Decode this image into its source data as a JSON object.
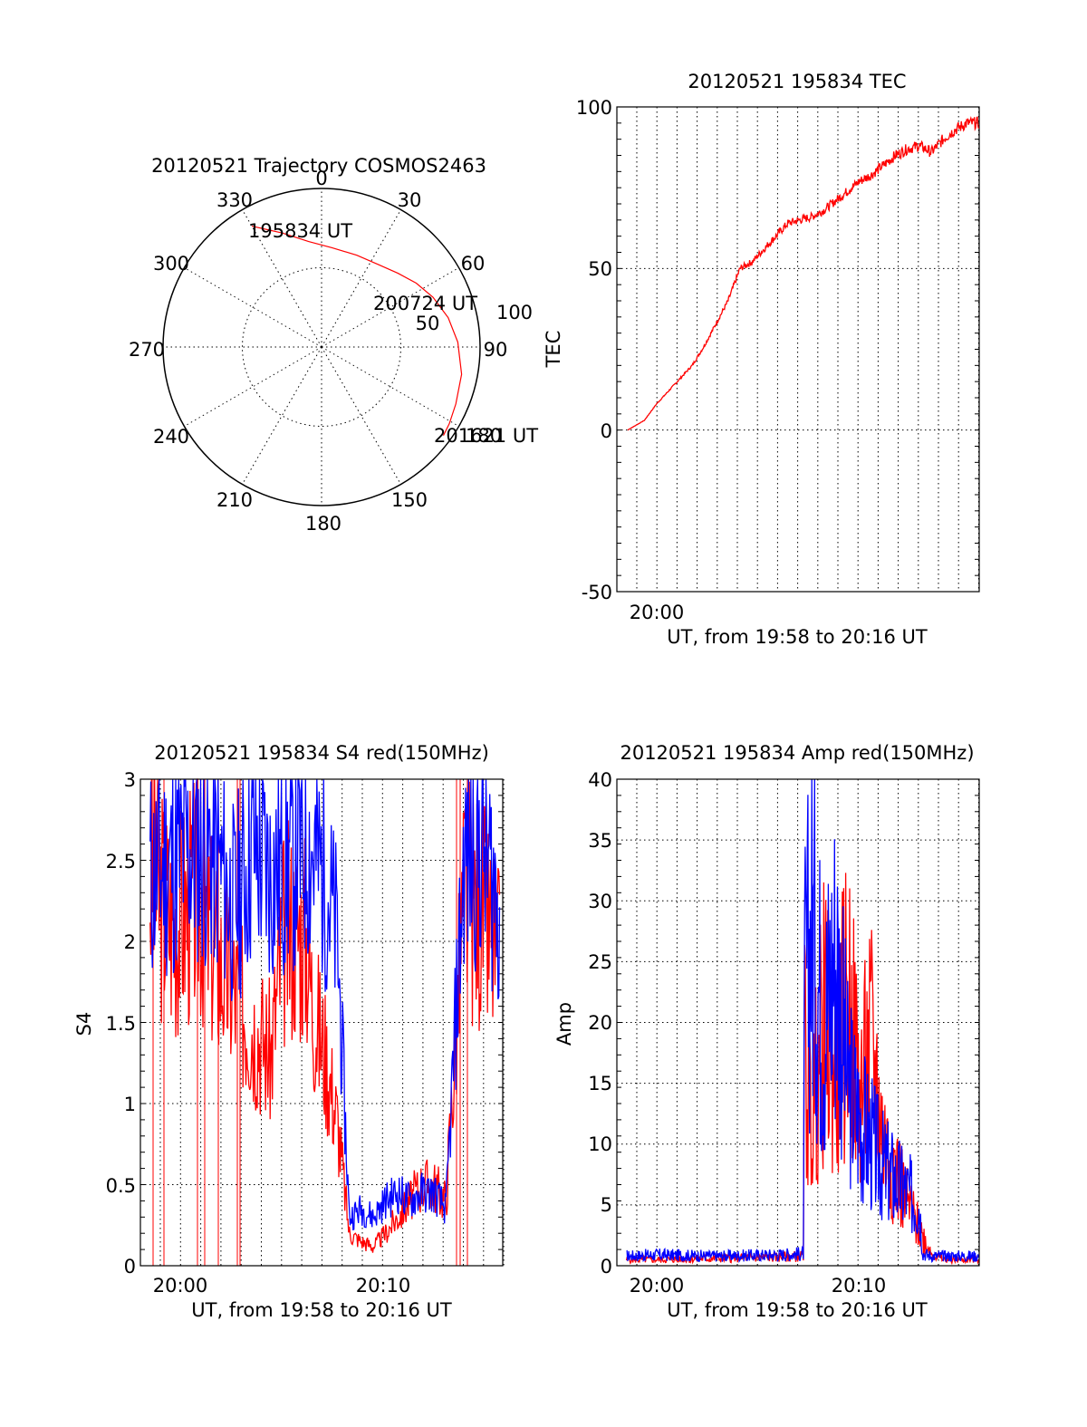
{
  "colors": {
    "red": "#ff0000",
    "blue": "#0000ff",
    "axis": "#000000"
  },
  "chart_data": [
    {
      "id": "polar",
      "type": "scatter",
      "coord": "polar",
      "title": "20120521 Trajectory COSMOS2463",
      "azimuth_labels": [
        "0",
        "30",
        "60",
        "90",
        "150",
        "180",
        "210",
        "240",
        "270",
        "300",
        "330"
      ],
      "radial_labels": [
        "50",
        "100"
      ],
      "rlim": [
        0,
        100
      ],
      "annotations": [
        "195834 UT",
        "200724 UT",
        "201621 UT"
      ],
      "extra_label": "180",
      "series": [
        {
          "color": "red",
          "points": [
            {
              "az": 330,
              "r": 88
            },
            {
              "az": 341,
              "r": 76
            },
            {
              "az": 353,
              "r": 67
            },
            {
              "az": 6,
              "r": 63
            },
            {
              "az": 21,
              "r": 62
            },
            {
              "az": 34,
              "r": 63
            },
            {
              "az": 46,
              "r": 67
            },
            {
              "az": 56,
              "r": 72
            },
            {
              "az": 66,
              "r": 77
            },
            {
              "az": 77,
              "r": 82
            },
            {
              "az": 88,
              "r": 86
            },
            {
              "az": 101,
              "r": 90
            },
            {
              "az": 113,
              "r": 92
            },
            {
              "az": 121,
              "r": 94
            },
            {
              "az": 126,
              "r": 95
            }
          ]
        }
      ]
    },
    {
      "id": "tec",
      "type": "line",
      "title": "20120521 195834 TEC",
      "xlabel": "UT, from 19:58 to 20:16 UT",
      "ylabel": "TEC",
      "xlim": [
        19.967,
        20.27
      ],
      "ylim": [
        -50,
        100
      ],
      "yticks": [
        "100",
        "50",
        "0",
        "-50"
      ],
      "xtick_label": "20:00",
      "series": [
        {
          "color": "red",
          "x": [
            19.976,
            19.99,
            20.0,
            20.01,
            20.02,
            20.03,
            20.04,
            20.05,
            20.06,
            20.07,
            20.08,
            20.09,
            20.1,
            20.11,
            20.12,
            20.13,
            20.14,
            20.15,
            20.16,
            20.17,
            20.18,
            20.19,
            20.2,
            20.21,
            20.22,
            20.23,
            20.24,
            20.25,
            20.26,
            20.27
          ],
          "y": [
            0,
            3,
            8,
            12,
            16,
            20,
            26,
            33,
            40,
            50,
            52,
            56,
            60,
            64,
            65,
            66,
            68,
            71,
            74,
            77,
            79,
            82,
            85,
            87,
            88,
            86,
            90,
            93,
            95,
            95
          ]
        }
      ]
    },
    {
      "id": "s4",
      "type": "line",
      "title": "20120521 195834 S4 red(150MHz)",
      "xlabel": "UT, from 19:58 to 20:16 UT",
      "ylabel": "S4",
      "xlim": [
        19.967,
        20.267
      ],
      "ylim": [
        0,
        3
      ],
      "yticks": [
        "3",
        "2.5",
        "2",
        "1.5",
        "1",
        "0.5",
        "0"
      ],
      "xtick_labels": [
        "20:00",
        "20:10"
      ],
      "series": [
        {
          "color": "red",
          "x": [
            19.975,
            19.995,
            20.015,
            20.03,
            20.045,
            20.06,
            20.075,
            20.085,
            20.095,
            20.105,
            20.11,
            20.12,
            20.13,
            20.14,
            20.15,
            20.16,
            20.17,
            20.18,
            20.19,
            20.2,
            20.21,
            20.22,
            20.235,
            20.25,
            20.265
          ],
          "y": [
            2.4,
            2.1,
            2.3,
            1.9,
            1.7,
            1.5,
            1.3,
            2.0,
            2.1,
            2.0,
            1.6,
            1.3,
            0.9,
            0.2,
            0.15,
            0.12,
            0.2,
            0.3,
            0.4,
            0.5,
            0.5,
            0.4,
            2.3,
            2.2,
            1.8
          ]
        },
        {
          "color": "blue",
          "x": [
            19.975,
            19.995,
            20.015,
            20.03,
            20.045,
            20.06,
            20.075,
            20.09,
            20.105,
            20.12,
            20.13,
            20.14,
            20.15,
            20.16,
            20.17,
            20.18,
            20.19,
            20.2,
            20.21,
            20.22,
            20.235,
            20.25,
            20.265
          ],
          "y": [
            2.4,
            2.5,
            2.6,
            2.5,
            2.2,
            2.6,
            2.4,
            2.5,
            2.6,
            2.4,
            2.0,
            0.3,
            0.35,
            0.3,
            0.4,
            0.45,
            0.4,
            0.45,
            0.45,
            0.35,
            2.5,
            2.6,
            2.2
          ]
        }
      ]
    },
    {
      "id": "amp",
      "type": "line",
      "title": "20120521 195834 Amp red(150MHz)",
      "xlabel": "UT, from 19:58 to 20:16 UT",
      "ylabel": "Amp",
      "xlim": [
        19.967,
        20.27
      ],
      "ylim": [
        0,
        40
      ],
      "yticks": [
        "40",
        "35",
        "30",
        "25",
        "20",
        "15",
        "10",
        "5",
        "0"
      ],
      "xtick_labels": [
        "20:00",
        "20:10"
      ],
      "series": [
        {
          "color": "red",
          "x": [
            19.975,
            20.0,
            20.05,
            20.1,
            20.123,
            20.124,
            20.13,
            20.14,
            20.15,
            20.16,
            20.17,
            20.18,
            20.19,
            20.2,
            20.21,
            20.22,
            20.23,
            20.24,
            20.27
          ],
          "y": [
            0.5,
            0.5,
            0.6,
            0.7,
            0.8,
            18,
            12,
            20,
            16,
            22,
            14,
            18,
            10,
            8,
            5,
            3,
            1,
            0.5,
            0.5
          ]
        },
        {
          "color": "blue",
          "x": [
            19.975,
            20.0,
            20.05,
            20.1,
            20.123,
            20.124,
            20.13,
            20.14,
            20.15,
            20.16,
            20.17,
            20.18,
            20.19,
            20.2,
            20.21,
            20.22,
            20.223,
            20.23,
            20.27
          ],
          "y": [
            0.8,
            0.9,
            0.8,
            0.9,
            1.0,
            22,
            28,
            20,
            26,
            15,
            12,
            10,
            8,
            7,
            6,
            5,
            1,
            0.8,
            0.8
          ]
        }
      ]
    }
  ]
}
